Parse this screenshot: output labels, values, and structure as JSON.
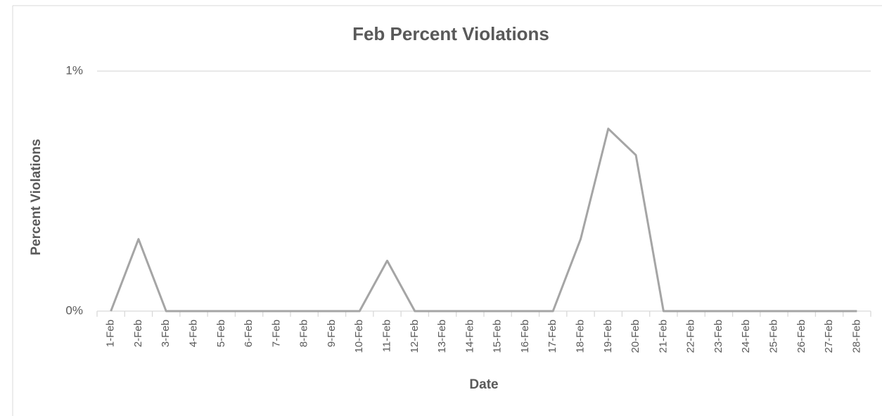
{
  "chart_data": {
    "type": "line",
    "title": "Feb Percent Violations",
    "x_label": "Date",
    "y_label": "Percent Violations",
    "categories": [
      "1-Feb",
      "2-Feb",
      "3-Feb",
      "4-Feb",
      "5-Feb",
      "6-Feb",
      "7-Feb",
      "8-Feb",
      "9-Feb",
      "10-Feb",
      "11-Feb",
      "12-Feb",
      "13-Feb",
      "14-Feb",
      "15-Feb",
      "16-Feb",
      "17-Feb",
      "18-Feb",
      "19-Feb",
      "20-Feb",
      "21-Feb",
      "22-Feb",
      "23-Feb",
      "24-Feb",
      "25-Feb",
      "26-Feb",
      "27-Feb",
      "28-Feb"
    ],
    "series": [
      {
        "name": "Percent Violations",
        "color": "#a5a5a5",
        "values": [
          0,
          0.3,
          0,
          0,
          0,
          0,
          0,
          0,
          0,
          0,
          0.21,
          0,
          0,
          0,
          0,
          0,
          0,
          0.3,
          0.76,
          0.65,
          0,
          0,
          0,
          0,
          0,
          0,
          0,
          0
        ]
      }
    ],
    "ylim": [
      0,
      1
    ],
    "yticks": [
      {
        "value": 0,
        "label": "0%"
      },
      {
        "value": 1,
        "label": "1%"
      }
    ],
    "grid": true
  }
}
